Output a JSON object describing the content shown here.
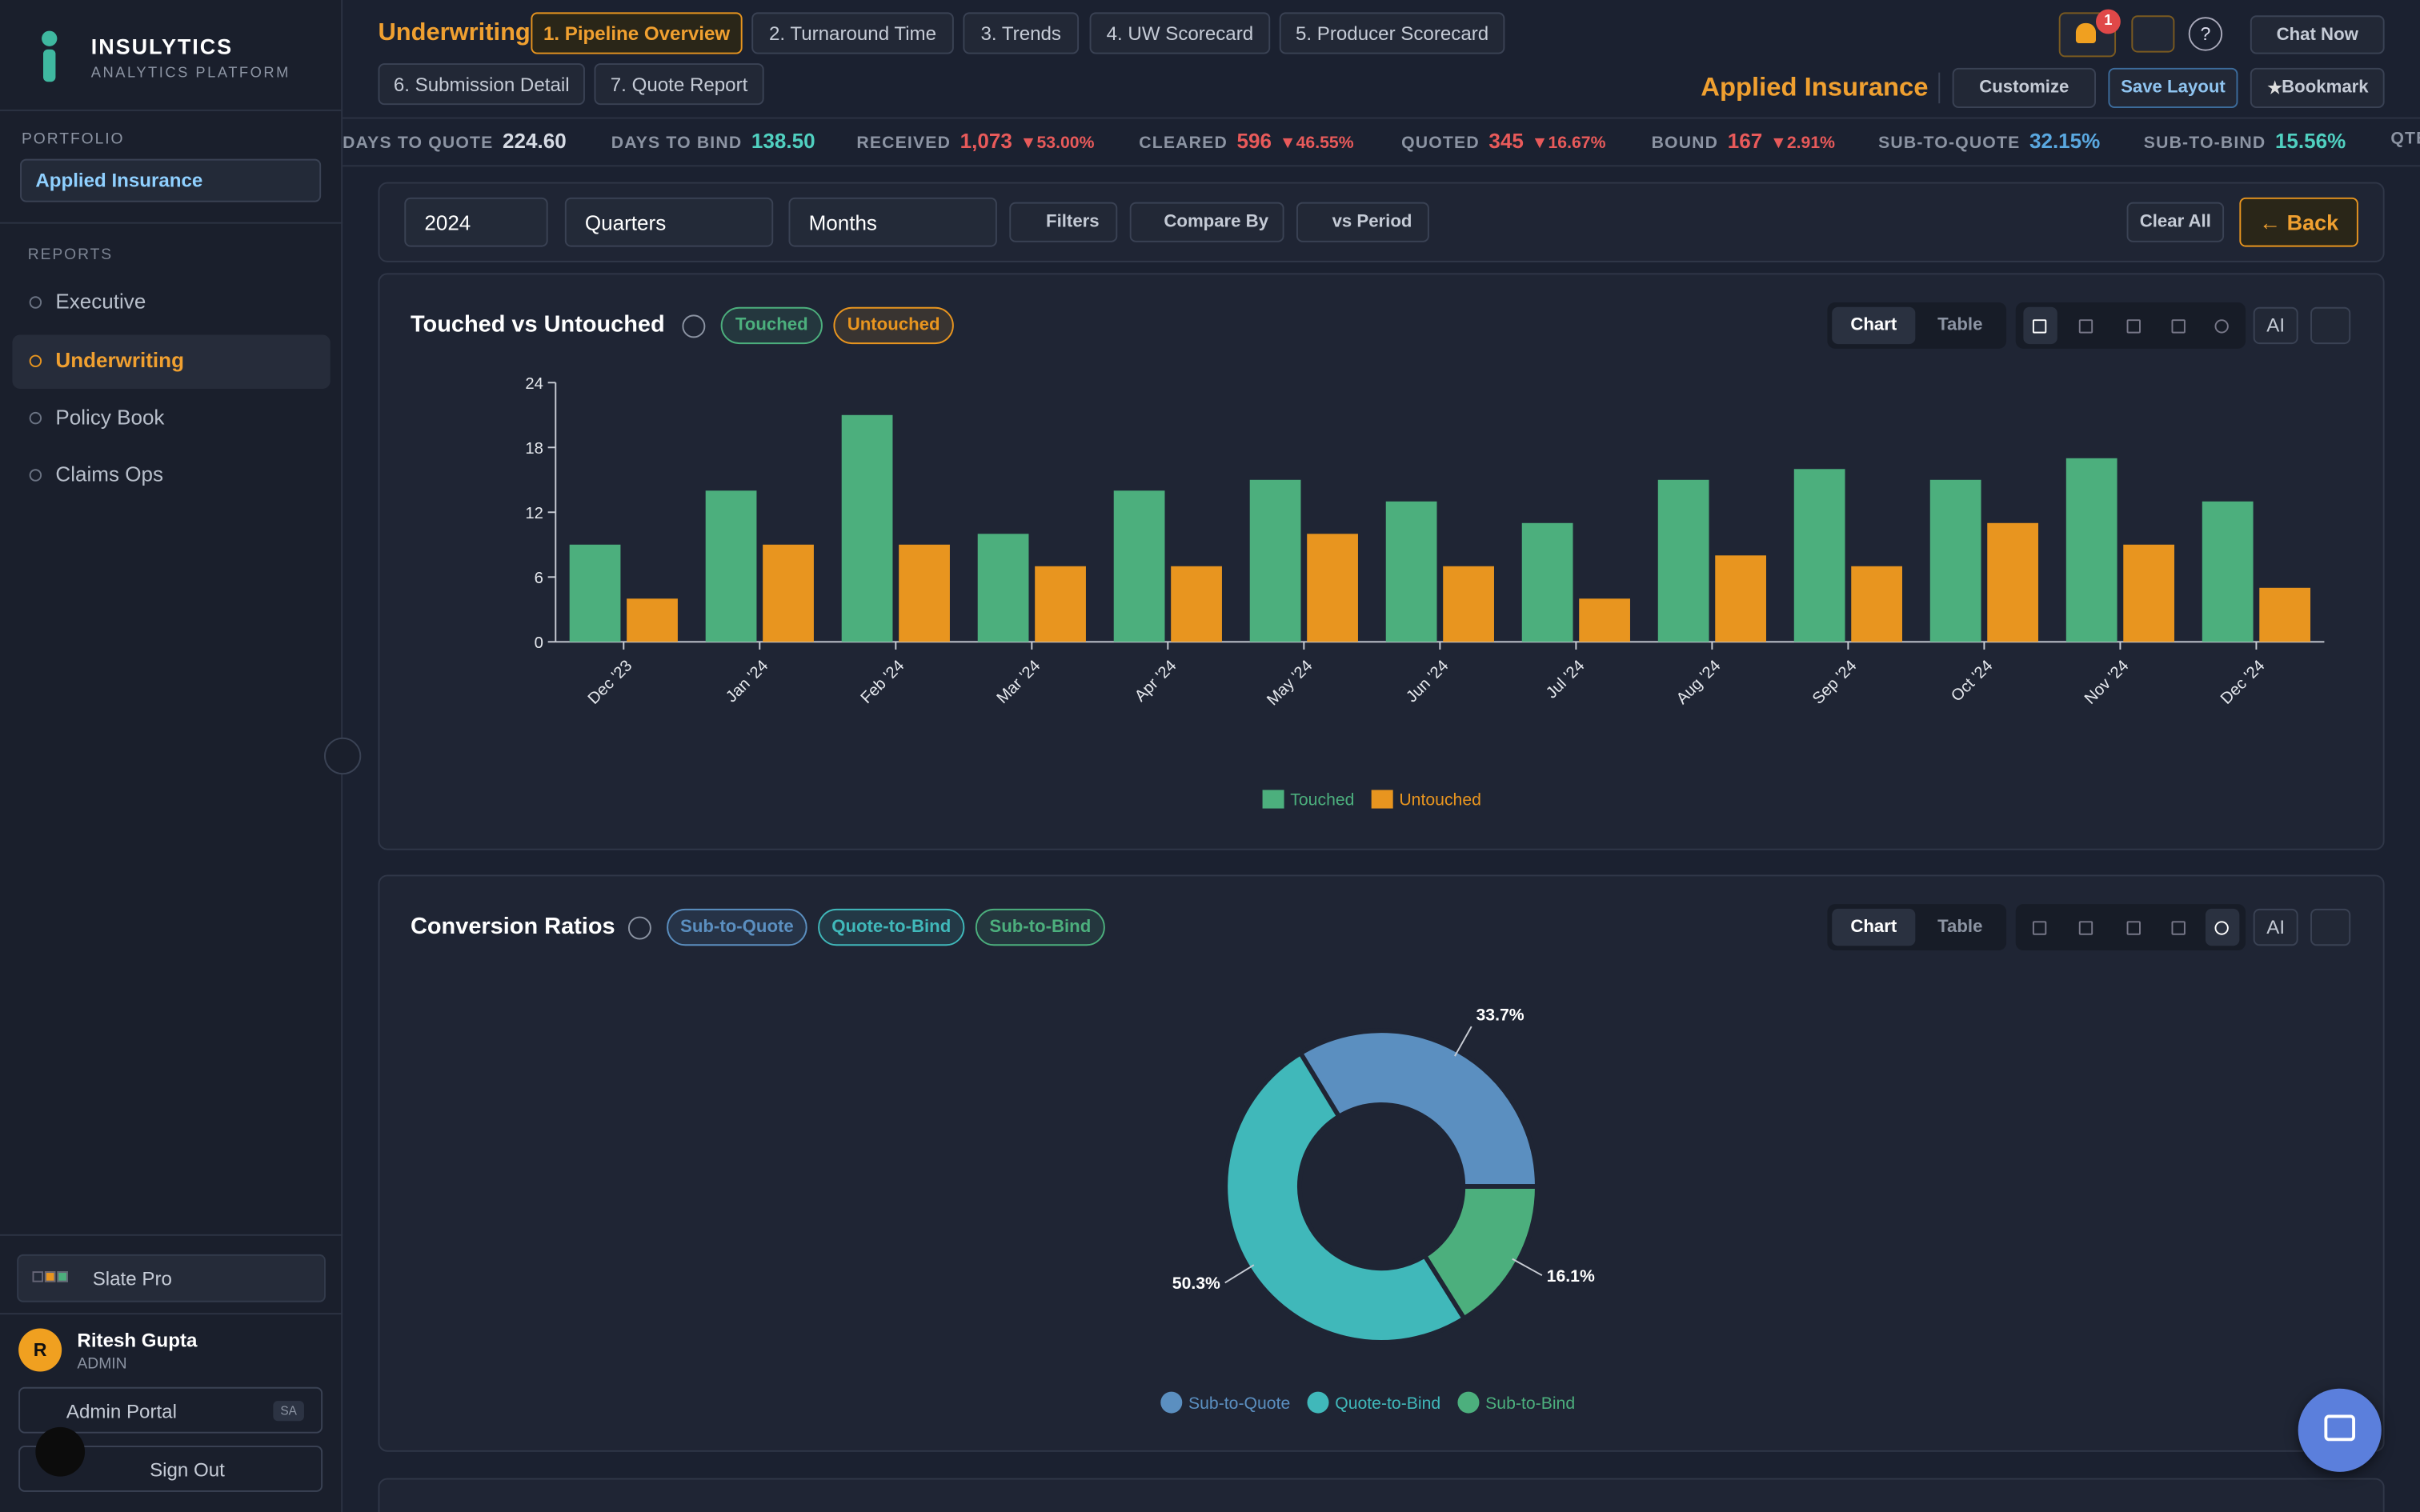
{
  "sidebar": {
    "brand": "INSULYTICS",
    "tagline": "ANALYTICS PLATFORM",
    "portfolio_label": "PORTFOLIO",
    "portfolio": "Applied Insurance",
    "reports_label": "REPORTS",
    "reports": [
      "Executive",
      "Underwriting",
      "Policy Book",
      "Claims Ops"
    ],
    "theme": "Slate Pro",
    "user": {
      "initial": "R",
      "name": "Ritesh Gupta",
      "role": "ADMIN"
    },
    "admin_portal": "Admin Portal",
    "admin_badge": "SA",
    "sign_out": "Sign Out"
  },
  "header": {
    "section": "Underwriting",
    "tabs": [
      "1. Pipeline Overview",
      "2. Turnaround Time",
      "3. Trends",
      "4. UW Scorecard",
      "5. Producer Scorecard",
      "6. Submission Detail",
      "7. Quote Report"
    ],
    "notifications": "1",
    "help": "?",
    "chat": "Chat Now",
    "company": "Applied Insurance",
    "customize": "Customize",
    "save": "Save Layout",
    "bookmark": "Bookmark"
  },
  "kpis": [
    {
      "label": "DAYS TO QUOTE",
      "value": "224.60"
    },
    {
      "label": "DAYS TO BIND",
      "value": "138.50"
    },
    {
      "label": "RECEIVED",
      "value": "1,073",
      "change": "▼53.00%"
    },
    {
      "label": "CLEARED",
      "value": "596",
      "change": "▼46.55%"
    },
    {
      "label": "QUOTED",
      "value": "345",
      "change": "▼16.67%"
    },
    {
      "label": "BOUND",
      "value": "167",
      "change": "▼2.91%"
    },
    {
      "label": "SUB-TO-QUOTE",
      "value": "32.15%"
    },
    {
      "label": "SUB-TO-BIND",
      "value": "15.56%"
    },
    {
      "label": "QTE"
    }
  ],
  "filters": {
    "year": "2024",
    "period": "Quarters",
    "granularity": "Months",
    "buttons": [
      "Filters",
      "Compare By",
      "vs Period"
    ],
    "clear": "Clear All",
    "back": "← Back"
  },
  "panel_controls": {
    "views": [
      "Chart",
      "Table"
    ],
    "ai": "AI"
  },
  "chart_data": [
    {
      "type": "bar",
      "title": "Touched vs Untouched",
      "categories": [
        "Dec '23",
        "Jan '24",
        "Feb '24",
        "Mar '24",
        "Apr '24",
        "May '24",
        "Jun '24",
        "Jul '24",
        "Aug '24",
        "Sep '24",
        "Oct '24",
        "Nov '24",
        "Dec '24"
      ],
      "series": [
        {
          "name": "Touched",
          "color": "#4caf7d",
          "values": [
            9,
            14,
            21,
            10,
            14,
            15,
            13,
            11,
            15,
            16,
            15,
            17,
            13
          ]
        },
        {
          "name": "Untouched",
          "color": "#e8951f",
          "values": [
            4,
            9,
            9,
            7,
            7,
            10,
            7,
            4,
            8,
            7,
            11,
            9,
            5
          ]
        }
      ],
      "ylim": [
        0,
        24
      ],
      "yticks": [
        0,
        6,
        12,
        18,
        24
      ],
      "legend": "bottom"
    },
    {
      "type": "pie",
      "title": "Conversion Ratios",
      "categories": [
        "Sub-to-Quote",
        "Quote-to-Bind",
        "Sub-to-Bind"
      ],
      "values": [
        33.7,
        50.3,
        16.1
      ],
      "value_labels": [
        "33.7%",
        "50.3%",
        "16.1%"
      ],
      "colors": [
        "#5b8fc0",
        "#40b8ba",
        "#4caf7d"
      ],
      "legend": "bottom"
    }
  ]
}
